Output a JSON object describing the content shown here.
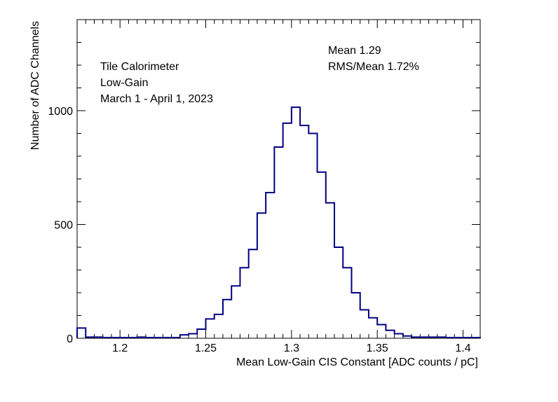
{
  "chart_data": {
    "type": "bar",
    "histogram": true,
    "title": "",
    "xlabel": "Mean Low-Gain CIS Constant [ADC counts / pC]",
    "ylabel": "Number of ADC Channels",
    "xlim": [
      1.175,
      1.41
    ],
    "ylim": [
      0,
      1400
    ],
    "x_ticks": [
      1.2,
      1.25,
      1.3,
      1.35,
      1.4
    ],
    "x_tick_labels": [
      "1.2",
      "1.25",
      "1.3",
      "1.35",
      "1.4"
    ],
    "y_ticks": [
      0,
      500,
      1000
    ],
    "y_tick_labels": [
      "0",
      "500",
      "1000"
    ],
    "bin_width": 0.005,
    "x_start": 1.175,
    "values": [
      45,
      5,
      5,
      3,
      3,
      3,
      3,
      5,
      3,
      3,
      3,
      3,
      15,
      20,
      40,
      85,
      105,
      170,
      230,
      310,
      390,
      550,
      640,
      840,
      945,
      1015,
      935,
      900,
      730,
      595,
      400,
      310,
      200,
      125,
      90,
      60,
      35,
      20,
      10,
      5,
      5,
      5,
      5,
      3,
      3,
      3,
      3
    ],
    "line_color": "#000080",
    "annotations": {
      "experiment": "Tile Calorimeter",
      "gain": "Low-Gain",
      "period": "March 1 - April 1, 2023",
      "mean": "Mean  1.29",
      "rms_mean": "RMS/Mean  1.72%"
    },
    "grid": false
  }
}
